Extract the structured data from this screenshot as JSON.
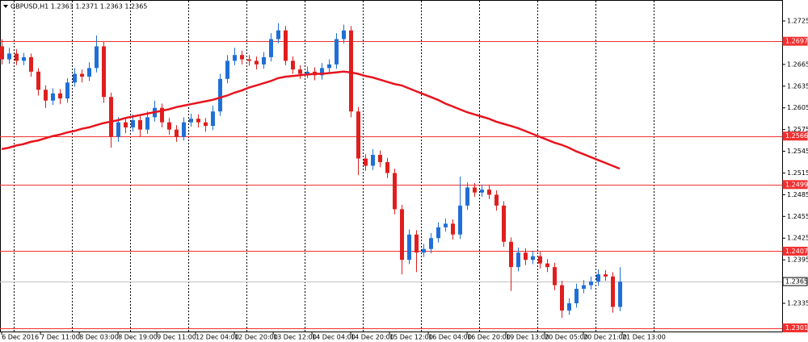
{
  "chart_data": {
    "type": "candlestick",
    "header": "GBPUSD,H1  1.2363 1.2371 1.2363 1.2365",
    "up_color": "#1f6fd6",
    "down_color": "#e01e1e",
    "x": [
      0,
      3,
      6,
      9,
      12,
      15,
      18,
      21,
      24,
      27,
      30,
      33,
      36,
      39,
      42,
      45,
      48,
      51,
      54,
      57,
      60,
      63,
      66,
      69,
      72,
      75,
      78,
      81,
      84,
      87,
      90,
      93,
      96,
      99,
      102,
      105,
      108,
      111,
      114,
      117,
      120,
      123,
      126,
      129,
      132,
      135,
      138,
      141,
      144,
      147,
      150,
      153,
      156,
      159,
      162,
      165,
      168,
      171,
      174,
      177,
      180,
      183,
      186,
      189,
      192,
      195,
      198,
      201,
      204,
      207,
      210,
      213,
      216,
      219,
      222,
      225,
      228,
      231,
      234,
      237,
      240,
      243,
      246,
      249,
      252,
      255
    ],
    "open": [
      1.269,
      1.2672,
      1.268,
      1.267,
      1.2675,
      1.2655,
      1.263,
      1.2615,
      1.2625,
      1.2618,
      1.264,
      1.2652,
      1.2648,
      1.266,
      1.269,
      1.262,
      1.2565,
      1.2585,
      1.2578,
      1.2588,
      1.2575,
      1.2592,
      1.2605,
      1.2585,
      1.2575,
      1.2565,
      1.2585,
      1.259,
      1.2585,
      1.258,
      1.26,
      1.2645,
      1.267,
      1.2678,
      1.2672,
      1.267,
      1.2665,
      1.2675,
      1.27,
      1.2712,
      1.267,
      1.2658,
      1.2652,
      1.2655,
      1.265,
      1.266,
      1.2665,
      1.27,
      1.2712,
      1.26,
      1.2535,
      1.2525,
      1.254,
      1.253,
      1.2515,
      1.2465,
      1.2395,
      1.243,
      1.2405,
      1.241,
      1.2425,
      1.244,
      1.2445,
      1.243,
      1.247,
      1.2495,
      1.2488,
      1.2492,
      1.2485,
      1.247,
      1.242,
      1.2385,
      1.2405,
      1.2395,
      1.24,
      1.239,
      1.2385,
      1.236,
      1.2325,
      1.2335,
      1.2355,
      1.236,
      1.2365,
      1.2375,
      1.2372,
      1.233
    ],
    "high": [
      1.27,
      1.2688,
      1.2686,
      1.2681,
      1.268,
      1.266,
      1.2636,
      1.2632,
      1.2631,
      1.2646,
      1.266,
      1.2658,
      1.2668,
      1.2705,
      1.2696,
      1.2626,
      1.2592,
      1.2591,
      1.2596,
      1.2594,
      1.26,
      1.2615,
      1.2611,
      1.2591,
      1.2581,
      1.2592,
      1.2597,
      1.2596,
      1.2591,
      1.2608,
      1.2652,
      1.2678,
      1.2688,
      1.2684,
      1.2678,
      1.2676,
      1.2682,
      1.2708,
      1.2722,
      1.2718,
      1.2676,
      1.2664,
      1.2662,
      1.2661,
      1.2667,
      1.2672,
      1.2708,
      1.272,
      1.2718,
      1.2606,
      1.2541,
      1.2548,
      1.2546,
      1.2536,
      1.2521,
      1.2471,
      1.2437,
      1.2436,
      1.2417,
      1.2432,
      1.2447,
      1.2452,
      1.2451,
      1.251,
      1.2502,
      1.2501,
      1.2499,
      1.2498,
      1.2491,
      1.2476,
      1.2426,
      1.2412,
      1.2411,
      1.2407,
      1.2406,
      1.2396,
      1.2391,
      1.2366,
      1.2342,
      1.2362,
      1.2367,
      1.2372,
      1.2382,
      1.2381,
      1.2378,
      1.2385
    ],
    "low": [
      1.2665,
      1.2666,
      1.2664,
      1.2664,
      1.2648,
      1.2622,
      1.2605,
      1.2609,
      1.261,
      1.2612,
      1.2634,
      1.264,
      1.2642,
      1.2654,
      1.2612,
      1.255,
      1.2558,
      1.257,
      1.2572,
      1.2565,
      1.2569,
      1.2586,
      1.2578,
      1.2568,
      1.2558,
      1.256,
      1.2579,
      1.2578,
      1.2572,
      1.2574,
      1.2594,
      1.2639,
      1.2664,
      1.2665,
      1.2663,
      1.2658,
      1.2659,
      1.2669,
      1.2694,
      1.2664,
      1.2652,
      1.2645,
      1.2646,
      1.2643,
      1.2644,
      1.2654,
      1.2659,
      1.2694,
      1.2592,
      1.2512,
      1.2518,
      1.2519,
      1.2523,
      1.2508,
      1.2458,
      1.2375,
      1.2389,
      1.2378,
      1.2399,
      1.2404,
      1.2419,
      1.2434,
      1.2423,
      1.2424,
      1.2464,
      1.2482,
      1.2482,
      1.2479,
      1.2463,
      1.2413,
      1.2352,
      1.2379,
      1.2388,
      1.2389,
      1.2383,
      1.2378,
      1.2353,
      1.2315,
      1.2319,
      1.2329,
      1.2349,
      1.2354,
      1.2359,
      1.2366,
      1.2322,
      1.2324
    ],
    "close": [
      1.2672,
      1.268,
      1.267,
      1.2675,
      1.2655,
      1.263,
      1.2615,
      1.2625,
      1.2618,
      1.264,
      1.2652,
      1.2648,
      1.266,
      1.269,
      1.262,
      1.2565,
      1.2585,
      1.2578,
      1.2588,
      1.2575,
      1.2592,
      1.2605,
      1.2585,
      1.2575,
      1.2565,
      1.2585,
      1.259,
      1.2585,
      1.258,
      1.26,
      1.2645,
      1.267,
      1.2678,
      1.2672,
      1.267,
      1.2665,
      1.2675,
      1.27,
      1.2712,
      1.267,
      1.2658,
      1.2652,
      1.2655,
      1.265,
      1.266,
      1.2665,
      1.27,
      1.2712,
      1.26,
      1.2535,
      1.2525,
      1.254,
      1.253,
      1.2515,
      1.2465,
      1.2395,
      1.243,
      1.2405,
      1.241,
      1.2425,
      1.244,
      1.2445,
      1.243,
      1.247,
      1.2495,
      1.2488,
      1.2492,
      1.2485,
      1.247,
      1.242,
      1.2385,
      1.2405,
      1.2395,
      1.24,
      1.239,
      1.2385,
      1.236,
      1.2325,
      1.2335,
      1.2355,
      1.236,
      1.2365,
      1.2375,
      1.2372,
      1.233,
      1.2365
    ],
    "ma": {
      "color": "#e8141e",
      "values": [
        1.2548,
        1.255,
        1.2553,
        1.2555,
        1.2558,
        1.256,
        1.2563,
        1.2566,
        1.2568,
        1.2571,
        1.2573,
        1.2576,
        1.2578,
        1.2581,
        1.2584,
        1.2586,
        1.2588,
        1.2591,
        1.2593,
        1.2595,
        1.2597,
        1.2599,
        1.2601,
        1.2603,
        1.2606,
        1.2608,
        1.261,
        1.2612,
        1.2614,
        1.2616,
        1.2619,
        1.2622,
        1.2626,
        1.2629,
        1.2633,
        1.2636,
        1.2639,
        1.2642,
        1.2646,
        1.2648,
        1.2649,
        1.265,
        1.2651,
        1.2652,
        1.2652,
        1.2653,
        1.2654,
        1.2655,
        1.2654,
        1.2652,
        1.2649,
        1.2647,
        1.2644,
        1.2641,
        1.2638,
        1.2636,
        1.2632,
        1.2628,
        1.2624,
        1.262,
        1.2616,
        1.2611,
        1.2607,
        1.2603,
        1.2599,
        1.2596,
        1.2593,
        1.259,
        1.2586,
        1.2583,
        1.258,
        1.2577,
        1.2573,
        1.2569,
        1.2565,
        1.2561,
        1.2557,
        1.2554,
        1.255,
        1.2545,
        1.2541,
        1.2537,
        1.2533,
        1.2529,
        1.2525,
        1.2521
      ]
    },
    "levels": [
      {
        "value": 1.2697,
        "color": "#f23030"
      },
      {
        "value": 1.2566,
        "color": "#f23030"
      },
      {
        "value": 1.2499,
        "color": "#f23030"
      },
      {
        "value": 1.2407,
        "color": "#f23030"
      },
      {
        "value": 1.2365,
        "color": "#c0c0c0"
      },
      {
        "value": 1.2301,
        "color": "#f23030"
      }
    ],
    "xlim": [
      -0.7,
      322
    ],
    "ylim": [
      1.2296,
      1.2754
    ],
    "yticks": [
      1.2725,
      1.2665,
      1.2635,
      1.2605,
      1.2575,
      1.2545,
      1.2515,
      1.2485,
      1.2455,
      1.2425,
      1.2395,
      1.2335
    ],
    "xticks": [
      {
        "value": 0,
        "label": "6 Dec 2016"
      },
      {
        "value": 16,
        "label": "7 Dec 11:00"
      },
      {
        "value": 32,
        "label": "8 Dec 03:00"
      },
      {
        "value": 48,
        "label": "8 Dec 19:00"
      },
      {
        "value": 64,
        "label": "9 Dec 11:00"
      },
      {
        "value": 80,
        "label": "12 Dec 04:00"
      },
      {
        "value": 96,
        "label": "12 Dec 20:00"
      },
      {
        "value": 112,
        "label": "13 Dec 12:00"
      },
      {
        "value": 128,
        "label": "14 Dec 04:00"
      },
      {
        "value": 144,
        "label": "14 Dec 20:00"
      },
      {
        "value": 160,
        "label": "15 Dec 12:00"
      },
      {
        "value": 176,
        "label": "16 Dec 04:00"
      },
      {
        "value": 192,
        "label": "16 Dec 20:00"
      },
      {
        "value": 208,
        "label": "19 Dec 13:00"
      },
      {
        "value": 224,
        "label": "20 Dec 05:00"
      },
      {
        "value": 240,
        "label": "20 Dec 21:00"
      },
      {
        "value": 256,
        "label": "21 Dec 13:00"
      }
    ],
    "xgrid": [
      5,
      29,
      53,
      77,
      101,
      125,
      149,
      173,
      197,
      221,
      245,
      269
    ]
  }
}
